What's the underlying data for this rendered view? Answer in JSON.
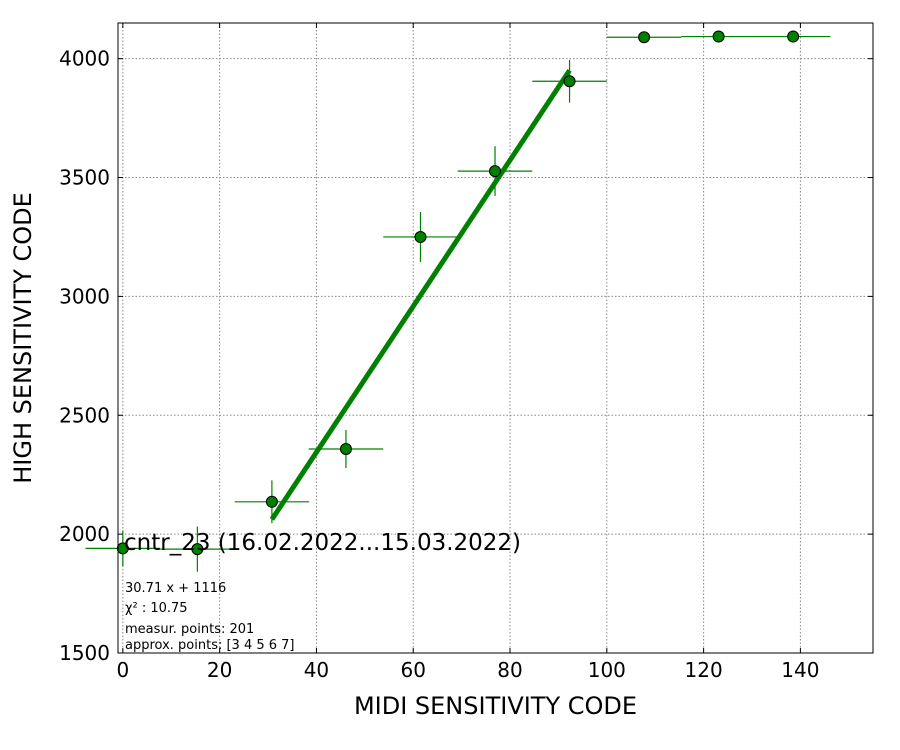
{
  "chart_data": {
    "type": "scatter",
    "title": "cntr_23 (16.02.2022...15.03.2022)",
    "xlabel": "MIDI SENSITIVITY CODE",
    "ylabel": "HIGH SENSITIVITY CODE",
    "xlim": [
      -1,
      155
    ],
    "ylim": [
      1500,
      4150
    ],
    "xticks": [
      0,
      20,
      40,
      60,
      80,
      100,
      120,
      140
    ],
    "yticks": [
      1500,
      2000,
      2500,
      3000,
      3500,
      4000
    ],
    "grid": true,
    "colors": {
      "points": "#008000",
      "fit_line": "#008000",
      "grid": "#888888"
    },
    "series": [
      {
        "kind": "points_with_errorbars",
        "points": [
          {
            "x": 0.0,
            "y": 1940,
            "xerr": 7.7,
            "yerr": 75
          },
          {
            "x": 15.4,
            "y": 1937,
            "xerr": 7.7,
            "yerr": 95
          },
          {
            "x": 30.8,
            "y": 2136,
            "xerr": 7.7,
            "yerr": 90
          },
          {
            "x": 46.1,
            "y": 2358,
            "xerr": 7.7,
            "yerr": 80
          },
          {
            "x": 61.5,
            "y": 3250,
            "xerr": 7.7,
            "yerr": 105
          },
          {
            "x": 76.9,
            "y": 3527,
            "xerr": 7.7,
            "yerr": 105
          },
          {
            "x": 92.3,
            "y": 3905,
            "xerr": 7.7,
            "yerr": 90
          },
          {
            "x": 107.7,
            "y": 4090,
            "xerr": 7.7,
            "yerr": 0
          },
          {
            "x": 123.1,
            "y": 4093,
            "xerr": 7.7,
            "yerr": 0
          },
          {
            "x": 138.5,
            "y": 4093,
            "xerr": 7.7,
            "yerr": 0
          }
        ]
      },
      {
        "kind": "fit_line",
        "slope": 30.71,
        "intercept": 1116,
        "x_range": [
          30.8,
          92.3
        ]
      }
    ],
    "annotations": {
      "equation": "30.71 x + 1116",
      "chi2_label": "χ² : 10.75",
      "measur_points": "measur. points: 201",
      "approx_points": "approx. points: [3 4 5 6 7]"
    }
  }
}
